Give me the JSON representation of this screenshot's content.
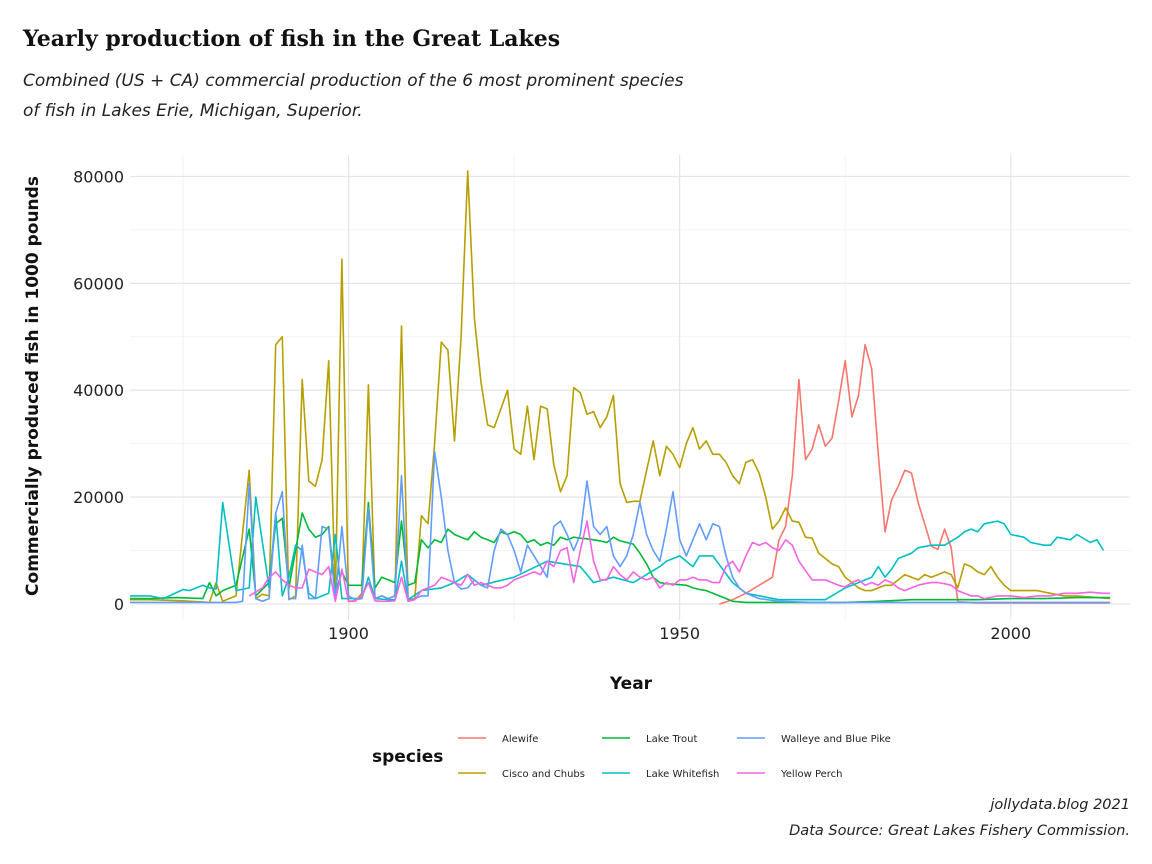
{
  "title": "Yearly production of fish in the Great Lakes",
  "subtitle_lines": [
    "Combined (US + CA) commercial production of the 6 most prominent species",
    "of fish in Lakes Erie, Michigan, Superior."
  ],
  "caption_lines": [
    "jollydata.blog 2021",
    "Data Source: Great Lakes Fishery Commission."
  ],
  "chart_data": {
    "type": "line",
    "title": "Yearly production of fish in the Great Lakes",
    "xlabel": "Year",
    "ylabel": "Commercially produced fish in 1000 pounds",
    "xlim": [
      1867,
      2018
    ],
    "ylim": [
      -3000,
      84000
    ],
    "xticks": [
      1900,
      1950,
      2000
    ],
    "yticks": [
      0,
      20000,
      40000,
      60000,
      80000
    ],
    "grid": true,
    "legend_title": "species",
    "legend_position": "bottom",
    "series": [
      {
        "name": "Alewife",
        "color": "#F8766D",
        "x": [
          1956,
          1958,
          1960,
          1962,
          1964,
          1965,
          1966,
          1967,
          1968,
          1969,
          1970,
          1971,
          1972,
          1973,
          1974,
          1975,
          1976,
          1977,
          1978,
          1979,
          1980,
          1981,
          1982,
          1983,
          1984,
          1985,
          1986,
          1987,
          1988,
          1989,
          1990,
          1991,
          1992,
          1995,
          2000,
          2005,
          2010,
          2015
        ],
        "y": [
          0,
          800,
          2000,
          3500,
          5000,
          12000,
          14500,
          24000,
          42000,
          27000,
          29000,
          33500,
          29500,
          31000,
          38000,
          45500,
          35000,
          39000,
          48500,
          44000,
          28000,
          13500,
          19500,
          22000,
          25000,
          24500,
          19000,
          15000,
          10800,
          10200,
          14000,
          10500,
          400,
          200,
          200,
          200,
          200,
          200
        ]
      },
      {
        "name": "Cisco and Chubs",
        "color": "#B79F00",
        "x": [
          1867,
          1870,
          1875,
          1879,
          1880,
          1881,
          1883,
          1885,
          1886,
          1887,
          1888,
          1889,
          1890,
          1891,
          1892,
          1893,
          1894,
          1895,
          1896,
          1897,
          1898,
          1899,
          1900,
          1901,
          1902,
          1903,
          1904,
          1905,
          1906,
          1907,
          1908,
          1909,
          1910,
          1911,
          1912,
          1913,
          1914,
          1915,
          1916,
          1917,
          1918,
          1919,
          1920,
          1921,
          1922,
          1923,
          1924,
          1925,
          1926,
          1927,
          1928,
          1929,
          1930,
          1931,
          1932,
          1933,
          1934,
          1935,
          1936,
          1937,
          1938,
          1939,
          1940,
          1941,
          1942,
          1943,
          1944,
          1945,
          1946,
          1947,
          1948,
          1949,
          1950,
          1951,
          1952,
          1953,
          1954,
          1955,
          1956,
          1957,
          1958,
          1959,
          1960,
          1961,
          1962,
          1963,
          1964,
          1965,
          1966,
          1967,
          1968,
          1969,
          1970,
          1971,
          1972,
          1973,
          1974,
          1975,
          1976,
          1977,
          1978,
          1979,
          1980,
          1981,
          1982,
          1983,
          1984,
          1985,
          1986,
          1987,
          1988,
          1989,
          1990,
          1991,
          1992,
          1993,
          1994,
          1995,
          1996,
          1997,
          1998,
          1999,
          2000,
          2002,
          2004,
          2006,
          2008,
          2010,
          2012,
          2015
        ],
        "y": [
          800,
          800,
          600,
          300,
          4000,
          500,
          1500,
          25000,
          1000,
          1800,
          1500,
          48500,
          50000,
          800,
          1500,
          42000,
          23000,
          22000,
          27000,
          45500,
          1000,
          64500,
          500,
          500,
          2000,
          41000,
          1000,
          1500,
          1000,
          1500,
          52000,
          800,
          1000,
          16500,
          15000,
          30000,
          49000,
          47500,
          30500,
          50000,
          81000,
          53500,
          41500,
          33500,
          33000,
          36500,
          40000,
          29000,
          28000,
          37000,
          27000,
          37000,
          36500,
          26000,
          21000,
          24000,
          40500,
          39500,
          35500,
          36000,
          33000,
          35000,
          39000,
          22500,
          19000,
          19200,
          19200,
          25000,
          30500,
          24000,
          29500,
          28000,
          25500,
          30000,
          33000,
          29000,
          30500,
          28000,
          28000,
          26500,
          24000,
          22500,
          26500,
          27000,
          24500,
          20000,
          14000,
          15500,
          18000,
          15500,
          15300,
          12500,
          12300,
          9500,
          8500,
          7500,
          7000,
          5000,
          4000,
          3000,
          2500,
          2500,
          3000,
          3500,
          3500,
          4500,
          5500,
          5000,
          4500,
          5500,
          5000,
          5500,
          6000,
          5500,
          3000,
          7500,
          7000,
          6000,
          5500,
          7000,
          5000,
          3500,
          2500,
          2500,
          2500,
          2000,
          1500,
          1500,
          1300,
          1000
        ]
      },
      {
        "name": "Lake Trout",
        "color": "#00BA38",
        "x": [
          1867,
          1870,
          1874,
          1878,
          1879,
          1880,
          1881,
          1883,
          1885,
          1886,
          1888,
          1889,
          1890,
          1891,
          1892,
          1893,
          1894,
          1895,
          1896,
          1897,
          1898,
          1899,
          1900,
          1901,
          1902,
          1903,
          1904,
          1905,
          1906,
          1907,
          1908,
          1909,
          1910,
          1911,
          1912,
          1913,
          1914,
          1915,
          1916,
          1917,
          1918,
          1919,
          1920,
          1921,
          1922,
          1923,
          1924,
          1925,
          1926,
          1927,
          1928,
          1929,
          1930,
          1931,
          1932,
          1933,
          1934,
          1935,
          1936,
          1937,
          1938,
          1939,
          1940,
          1941,
          1942,
          1943,
          1944,
          1945,
          1946,
          1947,
          1948,
          1949,
          1950,
          1951,
          1952,
          1953,
          1954,
          1955,
          1956,
          1958,
          1960,
          1962,
          1965,
          1970,
          1975,
          1980,
          1985,
          1990,
          1995,
          2000,
          2005,
          2010,
          2015
        ],
        "y": [
          1000,
          1000,
          1200,
          1000,
          4000,
          1500,
          2500,
          3500,
          14000,
          1500,
          4000,
          15000,
          16000,
          3000,
          10000,
          17000,
          14000,
          12500,
          13000,
          14500,
          2000,
          6000,
          3500,
          3500,
          3500,
          19000,
          3000,
          5000,
          4500,
          4000,
          15500,
          3500,
          4000,
          12000,
          10500,
          12000,
          11500,
          14000,
          13000,
          12500,
          12000,
          13500,
          12500,
          12000,
          11500,
          13500,
          13000,
          13500,
          13000,
          11500,
          12000,
          11000,
          11500,
          11000,
          12500,
          12000,
          12500,
          12300,
          12200,
          12000,
          11800,
          11500,
          12500,
          11800,
          11500,
          11200,
          9500,
          7500,
          5000,
          4000,
          3800,
          3700,
          3600,
          3500,
          3000,
          2700,
          2500,
          2000,
          1500,
          500,
          300,
          300,
          300,
          300,
          300,
          500,
          800,
          800,
          800,
          1000,
          1000,
          1200,
          1200
        ]
      },
      {
        "name": "Lake Whitefish",
        "color": "#00BFC4",
        "x": [
          1867,
          1870,
          1872,
          1873,
          1875,
          1876,
          1878,
          1879,
          1880,
          1881,
          1883,
          1885,
          1886,
          1888,
          1889,
          1890,
          1891,
          1892,
          1893,
          1894,
          1895,
          1896,
          1897,
          1898,
          1899,
          1900,
          1902,
          1903,
          1904,
          1906,
          1907,
          1908,
          1909,
          1911,
          1914,
          1916,
          1918,
          1920,
          1925,
          1930,
          1935,
          1937,
          1940,
          1943,
          1945,
          1947,
          1948,
          1950,
          1952,
          1953,
          1955,
          1958,
          1960,
          1965,
          1968,
          1970,
          1972,
          1975,
          1977,
          1978,
          1979,
          1980,
          1981,
          1982,
          1983,
          1984,
          1985,
          1986,
          1988,
          1990,
          1992,
          1993,
          1994,
          1995,
          1996,
          1998,
          1999,
          2000,
          2002,
          2003,
          2005,
          2006,
          2007,
          2009,
          2010,
          2012,
          2013,
          2014
        ],
        "y": [
          1500,
          1500,
          1000,
          1500,
          2700,
          2500,
          3500,
          3000,
          2800,
          19000,
          2500,
          3000,
          20000,
          3000,
          17000,
          1500,
          5000,
          11000,
          10000,
          2000,
          1000,
          1500,
          2000,
          13000,
          1000,
          1000,
          1000,
          5000,
          1000,
          800,
          800,
          8000,
          800,
          2500,
          3000,
          4000,
          5500,
          3500,
          5000,
          8000,
          7000,
          4000,
          5000,
          4000,
          5500,
          7000,
          8000,
          9000,
          7000,
          9000,
          9000,
          4000,
          2000,
          800,
          800,
          800,
          800,
          3000,
          4000,
          4500,
          5000,
          7000,
          5000,
          6500,
          8500,
          9000,
          9500,
          10500,
          11000,
          11000,
          12500,
          13500,
          14000,
          13500,
          15000,
          15500,
          15000,
          13000,
          12500,
          11500,
          11000,
          11000,
          12500,
          12000,
          13000,
          11500,
          12000,
          10000
        ]
      },
      {
        "name": "Walleye and Blue Pike",
        "color": "#619CFF",
        "x": [
          1867,
          1870,
          1875,
          1878,
          1880,
          1883,
          1884,
          1885,
          1886,
          1887,
          1888,
          1889,
          1890,
          1891,
          1892,
          1893,
          1894,
          1895,
          1896,
          1897,
          1898,
          1899,
          1900,
          1901,
          1902,
          1903,
          1904,
          1905,
          1906,
          1907,
          1908,
          1909,
          1910,
          1911,
          1912,
          1913,
          1914,
          1915,
          1916,
          1917,
          1918,
          1919,
          1920,
          1921,
          1922,
          1923,
          1924,
          1925,
          1926,
          1927,
          1928,
          1929,
          1930,
          1931,
          1932,
          1933,
          1934,
          1935,
          1936,
          1937,
          1938,
          1939,
          1940,
          1941,
          1942,
          1943,
          1944,
          1945,
          1946,
          1947,
          1948,
          1949,
          1950,
          1951,
          1952,
          1953,
          1954,
          1955,
          1956,
          1957,
          1958,
          1959,
          1960,
          1962,
          1965,
          1970,
          1975,
          1980,
          1985,
          1990,
          1995,
          2000,
          2005,
          2010,
          2015
        ],
        "y": [
          300,
          300,
          300,
          300,
          300,
          300,
          500,
          22500,
          1000,
          500,
          1000,
          17000,
          21000,
          1000,
          1000,
          11000,
          1000,
          1000,
          14500,
          14000,
          1000,
          14500,
          1500,
          800,
          1000,
          18000,
          1000,
          1500,
          1000,
          1500,
          24000,
          500,
          1000,
          1500,
          1500,
          28500,
          20000,
          10000,
          4000,
          2800,
          3000,
          4500,
          3500,
          3000,
          10000,
          14000,
          13000,
          10000,
          6000,
          11000,
          9000,
          7000,
          5000,
          14500,
          15500,
          13000,
          10000,
          13000,
          23000,
          14500,
          13000,
          14500,
          9000,
          7000,
          9000,
          13000,
          19000,
          13000,
          10000,
          8000,
          14000,
          21000,
          12000,
          9000,
          12000,
          15000,
          12000,
          15000,
          14500,
          9000,
          5000,
          3000,
          2000,
          1000,
          500,
          300,
          300,
          300,
          300,
          300,
          300,
          300,
          300,
          300,
          300
        ]
      },
      {
        "name": "Yellow Perch",
        "color": "#F564E3",
        "x": [
          1885,
          1887,
          1888,
          1889,
          1890,
          1891,
          1892,
          1893,
          1894,
          1895,
          1896,
          1897,
          1898,
          1899,
          1900,
          1901,
          1902,
          1903,
          1904,
          1905,
          1906,
          1907,
          1908,
          1909,
          1910,
          1911,
          1912,
          1913,
          1914,
          1915,
          1916,
          1917,
          1918,
          1919,
          1920,
          1921,
          1922,
          1923,
          1924,
          1925,
          1926,
          1927,
          1928,
          1929,
          1930,
          1931,
          1932,
          1933,
          1934,
          1935,
          1936,
          1937,
          1938,
          1939,
          1940,
          1941,
          1942,
          1943,
          1944,
          1945,
          1946,
          1947,
          1948,
          1949,
          1950,
          1951,
          1952,
          1953,
          1954,
          1955,
          1956,
          1957,
          1958,
          1959,
          1960,
          1961,
          1962,
          1963,
          1964,
          1965,
          1966,
          1967,
          1968,
          1970,
          1972,
          1974,
          1975,
          1976,
          1977,
          1978,
          1979,
          1980,
          1981,
          1982,
          1983,
          1984,
          1985,
          1986,
          1987,
          1988,
          1989,
          1990,
          1991,
          1992,
          1993,
          1994,
          1995,
          1996,
          1998,
          2000,
          2002,
          2004,
          2006,
          2008,
          2010,
          2012,
          2014,
          2015
        ],
        "y": [
          1500,
          3000,
          5000,
          6000,
          4500,
          3500,
          3000,
          3000,
          6500,
          6000,
          5500,
          7000,
          500,
          6500,
          500,
          600,
          1500,
          4000,
          600,
          500,
          500,
          600,
          5000,
          500,
          800,
          2500,
          3000,
          3500,
          5000,
          4500,
          4000,
          3500,
          5500,
          3500,
          4000,
          3500,
          3000,
          3000,
          3500,
          4500,
          5000,
          5500,
          6000,
          5500,
          8000,
          7000,
          10000,
          10500,
          4000,
          10000,
          15500,
          8000,
          4500,
          4500,
          7000,
          5500,
          4500,
          6000,
          5000,
          4500,
          5000,
          3000,
          4000,
          3500,
          4500,
          4500,
          5000,
          4500,
          4500,
          4000,
          4000,
          7000,
          8000,
          6000,
          9000,
          11500,
          11000,
          11500,
          10500,
          10000,
          12000,
          11000,
          8000,
          4500,
          4500,
          3500,
          3200,
          4000,
          4500,
          3500,
          4000,
          3500,
          4500,
          4000,
          3000,
          2500,
          3000,
          3500,
          3800,
          4000,
          4000,
          3800,
          3500,
          2500,
          2000,
          1500,
          1500,
          1000,
          1500,
          1500,
          1200,
          1500,
          1500,
          2000,
          2000,
          2200,
          2000,
          2000
        ]
      }
    ]
  }
}
